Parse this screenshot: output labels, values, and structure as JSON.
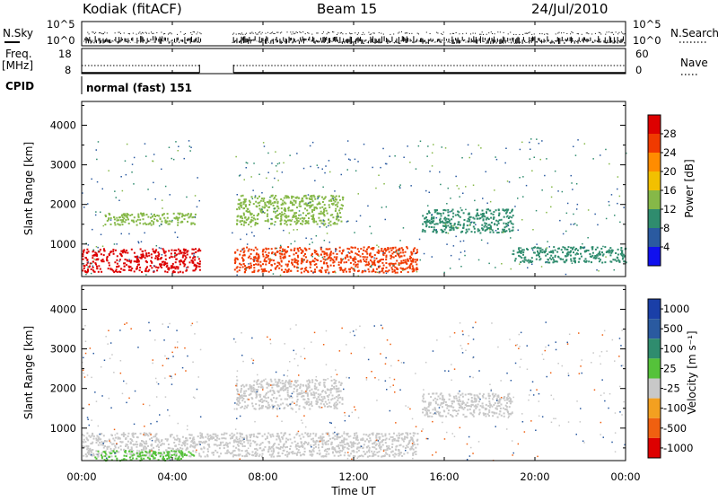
{
  "header": {
    "station": "Kodiak (fitACF)",
    "beam": "Beam 15",
    "date": "24/Jul/2010"
  },
  "noise_panel": {
    "left_label": "N.Sky",
    "right_label": "N.Search",
    "left_ticks": [
      "10^5",
      "10^0"
    ],
    "right_ticks": [
      "10^5",
      "10^0"
    ]
  },
  "freq_panel": {
    "left_label_line1": "Freq.",
    "left_label_line2": "[MHz]",
    "right_label": "Nave",
    "left_ticks": [
      "18",
      "8"
    ],
    "right_ticks": [
      "60",
      "0"
    ]
  },
  "cpid": {
    "label": "CPID",
    "value": "normal (fast) 151"
  },
  "power_panel": {
    "ylabel": "Slant Range [km]",
    "colorbar_label": "Power [dB]",
    "colorbar_ticks": [
      "28",
      "24",
      "20",
      "16",
      "12",
      "8",
      "4"
    ],
    "colorbar_colors": [
      "#dd0000",
      "#f03a00",
      "#ff8c00",
      "#f2c000",
      "#86b848",
      "#2f8c6e",
      "#2a5aa0",
      "#1010ee"
    ]
  },
  "velocity_panel": {
    "ylabel": "Slant Range [km]",
    "colorbar_label": "Velocity [m s⁻¹]",
    "colorbar_ticks": [
      "1000",
      "500",
      "100",
      "25",
      "-25",
      "-100",
      "-500",
      "-1000"
    ],
    "colorbar_colors": [
      "#1a3fa8",
      "#2a5aa0",
      "#2f8c6e",
      "#55c23a",
      "#c8c8c8",
      "#f3a020",
      "#f06010",
      "#dd0000"
    ]
  },
  "xaxis_label": "Time UT",
  "chart_data": {
    "type": "heatmap",
    "title": "Kodiak (fitACF)  Beam 15  24/Jul/2010",
    "xlabel": "Time UT",
    "ylabel": "Slant Range [km]",
    "x_ticks": [
      "00:00",
      "04:00",
      "08:00",
      "12:00",
      "16:00",
      "20:00",
      "00:00"
    ],
    "x_range_hours": [
      0,
      24
    ],
    "y_ticks": [
      1000,
      2000,
      3000,
      4000
    ],
    "ylim": [
      180,
      4600
    ],
    "data_gap_hours": [
      5.25,
      6.6
    ],
    "power_scatter_bands": [
      {
        "t0": 0.0,
        "t1": 5.2,
        "r0": 300,
        "r1": 900,
        "power_db": 29
      },
      {
        "t0": 6.7,
        "t1": 14.8,
        "r0": 300,
        "r1": 950,
        "power_db": 28
      },
      {
        "t0": 1.0,
        "t1": 5.0,
        "r0": 1500,
        "r1": 1800,
        "power_db": 15
      },
      {
        "t0": 6.8,
        "t1": 11.5,
        "r0": 1500,
        "r1": 2250,
        "power_db": 14
      },
      {
        "t0": 15.0,
        "t1": 19.0,
        "r0": 1300,
        "r1": 1900,
        "power_db": 12
      },
      {
        "t0": 19.0,
        "t1": 24.0,
        "r0": 550,
        "r1": 950,
        "power_db": 10
      }
    ],
    "velocity_scatter_bands": [
      {
        "t0": 0.0,
        "t1": 14.8,
        "r0": 300,
        "r1": 900,
        "velocity_ms": 0
      },
      {
        "t0": 0.5,
        "t1": 5.0,
        "r0": 200,
        "r1": 450,
        "velocity_ms": 60
      },
      {
        "t0": 6.8,
        "t1": 11.5,
        "r0": 1500,
        "r1": 2250,
        "velocity_ms": 0
      },
      {
        "t0": 15.0,
        "t1": 19.0,
        "r0": 1300,
        "r1": 1900,
        "velocity_ms": 0
      }
    ]
  }
}
